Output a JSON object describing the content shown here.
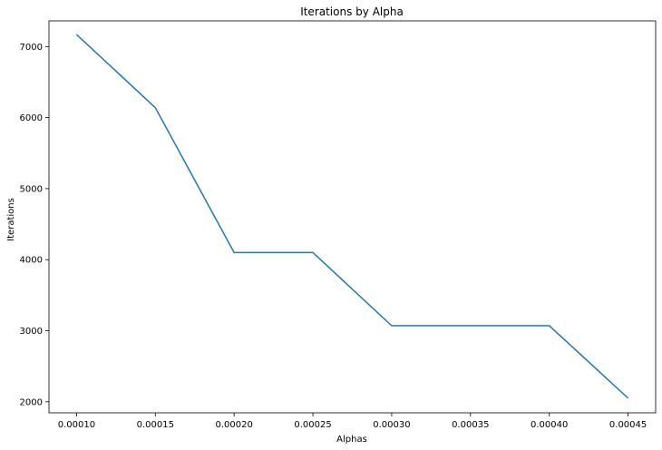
{
  "chart_data": {
    "type": "line",
    "title": "Iterations by Alpha",
    "xlabel": "Alphas",
    "ylabel": "Iterations",
    "xlim": [
      8.25e-05,
      0.0004675
    ],
    "ylim": [
      1844,
      7362
    ],
    "grid": false,
    "x": [
      0.0001,
      0.00015,
      0.0002,
      0.00025,
      0.0003,
      0.00035,
      0.0004,
      0.00045
    ],
    "series": [
      {
        "values": [
          7170,
          6140,
          4100,
          4100,
          3070,
          3070,
          3070,
          2050
        ]
      }
    ],
    "x_ticks": [
      {
        "value": 0.0001,
        "label": "0.00010"
      },
      {
        "value": 0.00015,
        "label": "0.00015"
      },
      {
        "value": 0.0002,
        "label": "0.00020"
      },
      {
        "value": 0.00025,
        "label": "0.00025"
      },
      {
        "value": 0.0003,
        "label": "0.00030"
      },
      {
        "value": 0.00035,
        "label": "0.00035"
      },
      {
        "value": 0.0004,
        "label": "0.00040"
      },
      {
        "value": 0.00045,
        "label": "0.00045"
      }
    ],
    "y_ticks": [
      {
        "value": 2000,
        "label": "2000"
      },
      {
        "value": 3000,
        "label": "3000"
      },
      {
        "value": 4000,
        "label": "4000"
      },
      {
        "value": 5000,
        "label": "5000"
      },
      {
        "value": 6000,
        "label": "6000"
      },
      {
        "value": 7000,
        "label": "7000"
      }
    ],
    "colors": {
      "line": "#1f77b4",
      "axes": "#000000",
      "text": "#000000",
      "background": "#ffffff"
    }
  }
}
